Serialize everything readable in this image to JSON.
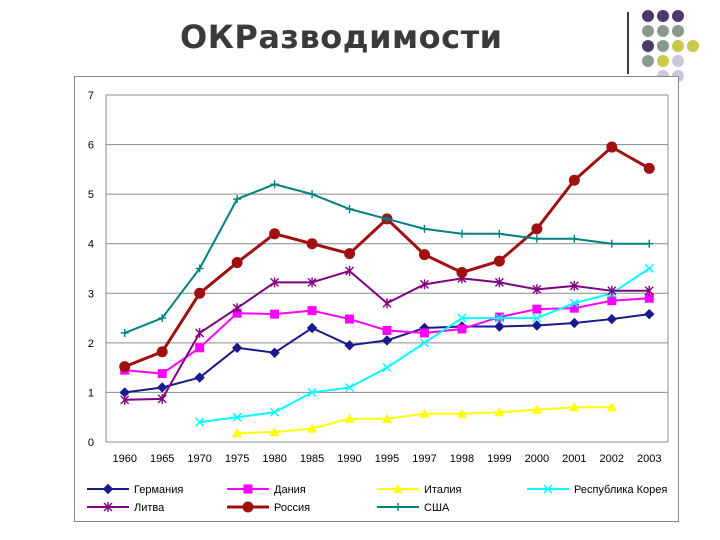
{
  "slide": {
    "title": "ОКРазводимости"
  },
  "decor": {
    "dot_colors": [
      "#4b3b6b",
      "#8a9a8a",
      "#c8c84a",
      "#c8c8d8"
    ]
  },
  "chart_data": {
    "type": "line",
    "categories": [
      "1960",
      "1965",
      "1970",
      "1975",
      "1980",
      "1985",
      "1990",
      "1995",
      "1997",
      "1998",
      "1999",
      "2000",
      "2001",
      "2002",
      "2003"
    ],
    "ylim": [
      0,
      7
    ],
    "yticks": [
      "0",
      "1",
      "2",
      "3",
      "4",
      "5",
      "6",
      "7"
    ],
    "grid": true,
    "legend_position": "bottom",
    "series": [
      {
        "name": "Германия",
        "color": "#1a1a8c",
        "marker": "diamond",
        "values": [
          1.0,
          1.1,
          1.3,
          1.9,
          1.8,
          2.3,
          1.95,
          2.05,
          2.3,
          2.33,
          2.33,
          2.35,
          2.4,
          2.48,
          2.58
        ]
      },
      {
        "name": "Дания",
        "color": "#ff00ff",
        "marker": "square",
        "values": [
          1.45,
          1.38,
          1.9,
          2.6,
          2.58,
          2.65,
          2.48,
          2.25,
          2.2,
          2.28,
          2.52,
          2.68,
          2.7,
          2.85,
          2.9
        ]
      },
      {
        "name": "Италия",
        "color": "#ffff00",
        "marker": "triangle",
        "values": [
          null,
          null,
          null,
          0.18,
          0.2,
          0.27,
          0.47,
          0.47,
          0.57,
          0.57,
          0.6,
          0.65,
          0.7,
          0.7,
          null
        ]
      },
      {
        "name": "Республика Корея",
        "color": "#00ffff",
        "marker": "x",
        "values": [
          null,
          null,
          0.4,
          0.5,
          0.6,
          1.0,
          1.1,
          1.5,
          2.0,
          2.5,
          2.5,
          2.5,
          2.8,
          3.0,
          3.5
        ]
      },
      {
        "name": "Литва",
        "color": "#800080",
        "marker": "star",
        "values": [
          0.85,
          0.87,
          2.2,
          2.7,
          3.22,
          3.22,
          3.45,
          2.8,
          3.18,
          3.3,
          3.22,
          3.08,
          3.15,
          3.05,
          3.05
        ]
      },
      {
        "name": "Россия",
        "color": "#a01010",
        "marker": "circle",
        "values": [
          1.52,
          1.82,
          3.0,
          3.62,
          4.2,
          4.0,
          3.8,
          4.5,
          3.78,
          3.42,
          3.65,
          4.3,
          5.28,
          5.95,
          5.52
        ]
      },
      {
        "name": "США",
        "color": "#008080",
        "marker": "plus",
        "values": [
          2.2,
          2.5,
          3.5,
          4.9,
          5.2,
          5.0,
          4.7,
          4.5,
          4.3,
          4.2,
          4.2,
          4.1,
          4.1,
          4.0,
          4.0
        ]
      }
    ]
  }
}
